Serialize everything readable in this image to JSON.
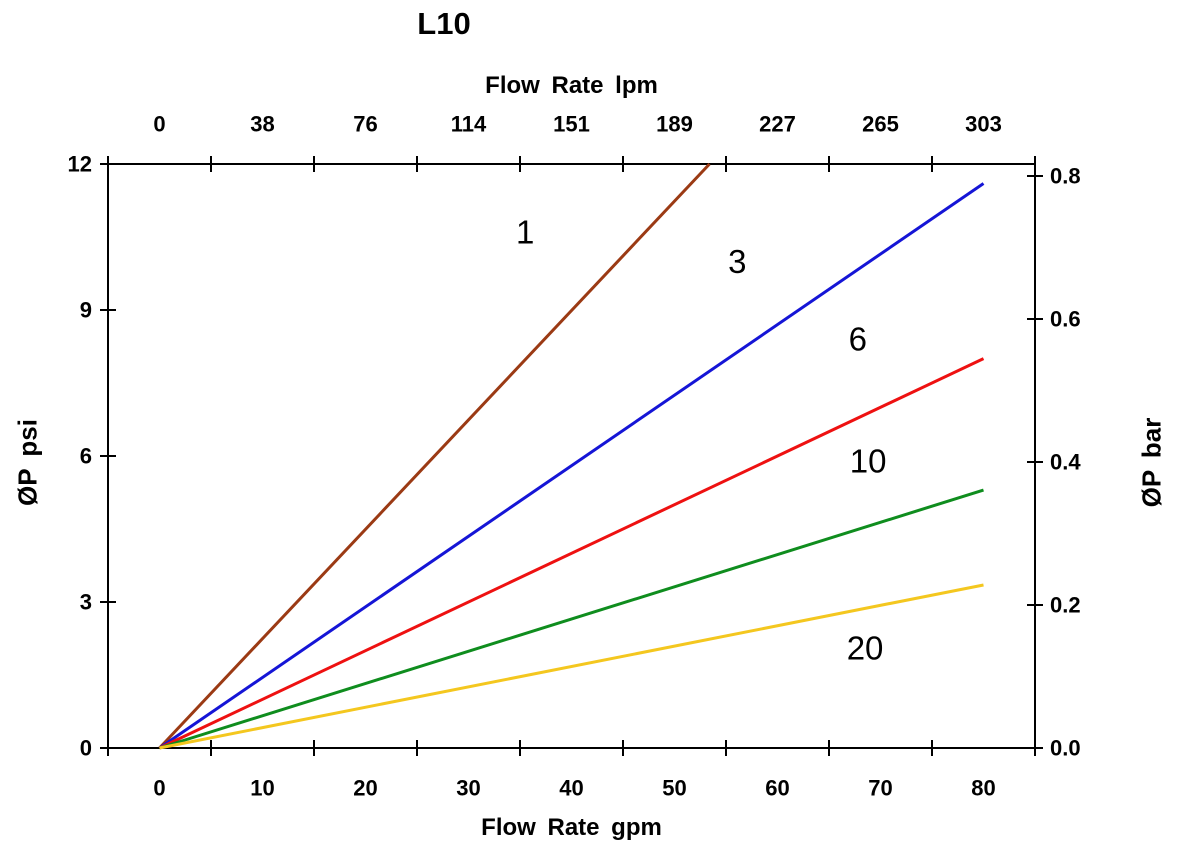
{
  "page": {
    "background": "#ffffff"
  },
  "chart_data": {
    "type": "line",
    "title": "L10",
    "grid": false,
    "legend": "none (series labeled inline: 1, 3, 6, 10, 20)",
    "axis_color": "#000000",
    "text_color": "#000000",
    "axes": {
      "top_x": {
        "label": "Flow Rate lpm",
        "tick_labels": [
          "0",
          "38",
          "76",
          "114",
          "151",
          "189",
          "227",
          "265",
          "303"
        ],
        "tick_values": [
          0,
          38,
          76,
          114,
          151,
          189,
          227,
          265,
          303
        ]
      },
      "bottom_x": {
        "label": "Flow Rate gpm",
        "tick_labels": [
          "0",
          "10",
          "20",
          "30",
          "40",
          "50",
          "60",
          "70",
          "80"
        ],
        "tick_values": [
          0,
          10,
          20,
          30,
          40,
          50,
          60,
          70,
          80
        ],
        "range": [
          0,
          80
        ]
      },
      "left_y": {
        "label": "ØP psi",
        "tick_labels": [
          "0",
          "3",
          "6",
          "9",
          "12"
        ],
        "tick_values": [
          0,
          3,
          6,
          9,
          12
        ],
        "range": [
          0,
          12
        ]
      },
      "right_y": {
        "label": "ØP bar",
        "tick_labels": [
          "0.0",
          "0.2",
          "0.4",
          "0.6",
          "0.8"
        ],
        "tick_values": [
          0,
          0.2,
          0.4,
          0.6,
          0.8
        ],
        "range": [
          0,
          0.8
        ]
      }
    },
    "series": [
      {
        "name": "1",
        "color": "#9b3a14",
        "points": [
          [
            0,
            0
          ],
          [
            53.4,
            12.0
          ]
        ],
        "label_at": [
          35.5,
          10.6
        ]
      },
      {
        "name": "3",
        "color": "#1515d6",
        "points": [
          [
            0,
            0
          ],
          [
            80,
            11.6
          ]
        ],
        "label_at": [
          56.1,
          10.0
        ]
      },
      {
        "name": "6",
        "color": "#ee1111",
        "points": [
          [
            0,
            0
          ],
          [
            80,
            8.0
          ]
        ],
        "label_at": [
          67.8,
          8.4
        ]
      },
      {
        "name": "10",
        "color": "#0f8d1e",
        "points": [
          [
            0,
            0
          ],
          [
            80,
            5.3
          ]
        ],
        "label_at": [
          68.8,
          5.9
        ]
      },
      {
        "name": "20",
        "color": "#f4c71f",
        "points": [
          [
            0,
            0
          ],
          [
            80,
            3.35
          ]
        ],
        "label_at": [
          68.5,
          2.05
        ]
      }
    ]
  }
}
